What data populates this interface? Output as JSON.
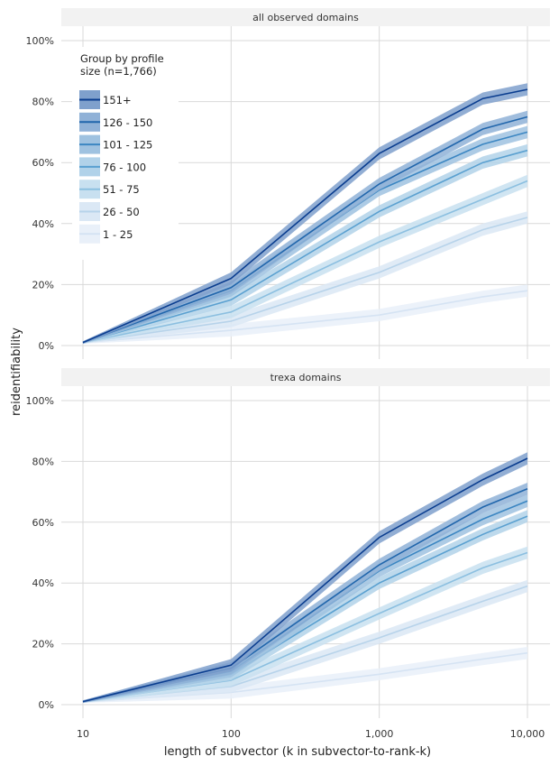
{
  "chart_data": {
    "type": "line",
    "xlabel": "length of subvector (k in subvector-to-rank-k)",
    "ylabel": "reidentifiability",
    "x_scale": "log",
    "xlim": [
      10,
      10000
    ],
    "ylim": [
      0,
      100
    ],
    "x_ticks": [
      10,
      100,
      1000,
      10000
    ],
    "x_tick_labels": [
      "10",
      "100",
      "1,000",
      "10,000"
    ],
    "y_ticks": [
      0,
      20,
      40,
      60,
      80,
      100
    ],
    "y_tick_labels": [
      "0%",
      "20%",
      "40%",
      "60%",
      "80%",
      "100%"
    ],
    "grid": true,
    "legend": {
      "title": "Group by profile size (n=1,766)",
      "title_lines": [
        "Group by profile",
        "size (n=1,766)"
      ],
      "placement": "top-left",
      "entries": [
        {
          "label": "151+",
          "line": "#0a3d8f",
          "band": "#7fa0cc"
        },
        {
          "label": "126 - 150",
          "line": "#2166ac",
          "band": "#8fb1d7"
        },
        {
          "label": "101 - 125",
          "line": "#3b86c2",
          "band": "#9fc2e0"
        },
        {
          "label": "76 - 100",
          "line": "#5aa0d0",
          "band": "#b1d2e9"
        },
        {
          "label": "51 - 75",
          "line": "#8bbfe0",
          "band": "#c8e0f0"
        },
        {
          "label": "26 - 50",
          "line": "#b7d3ea",
          "band": "#dbe8f5"
        },
        {
          "label": "1 - 25",
          "line": "#d5e3f3",
          "band": "#e9f0f9"
        }
      ]
    },
    "x": [
      10,
      100,
      1000,
      5000,
      10000
    ],
    "band_halfwidth": 2,
    "panels": [
      {
        "title": "all observed domains",
        "series": [
          {
            "name": "151+",
            "values": [
              1,
              22,
              63,
              81,
              84
            ]
          },
          {
            "name": "126 - 150",
            "values": [
              1,
              19,
              53,
              71,
              75
            ]
          },
          {
            "name": "101 - 125",
            "values": [
              1,
              18,
              51,
              66,
              70
            ]
          },
          {
            "name": "76 - 100",
            "values": [
              1,
              15,
              44,
              60,
              64
            ]
          },
          {
            "name": "51 - 75",
            "values": [
              1,
              11,
              34,
              48,
              54
            ]
          },
          {
            "name": "26 - 50",
            "values": [
              1,
              8,
              24,
              38,
              42
            ]
          },
          {
            "name": "1 - 25",
            "values": [
              1,
              5,
              10,
              16,
              18
            ]
          }
        ]
      },
      {
        "title": "trexa domains",
        "series": [
          {
            "name": "151+",
            "values": [
              1,
              13,
              55,
              74,
              81
            ]
          },
          {
            "name": "126 - 150",
            "values": [
              1,
              12,
              46,
              65,
              71
            ]
          },
          {
            "name": "101 - 125",
            "values": [
              1,
              11,
              44,
              61,
              67
            ]
          },
          {
            "name": "76 - 100",
            "values": [
              1,
              10,
              40,
              56,
              62
            ]
          },
          {
            "name": "51 - 75",
            "values": [
              1,
              8,
              30,
              45,
              50
            ]
          },
          {
            "name": "26 - 50",
            "values": [
              1,
              6,
              22,
              34,
              39
            ]
          },
          {
            "name": "1 - 25",
            "values": [
              1,
              4,
              10,
              15,
              17
            ]
          }
        ]
      }
    ]
  }
}
